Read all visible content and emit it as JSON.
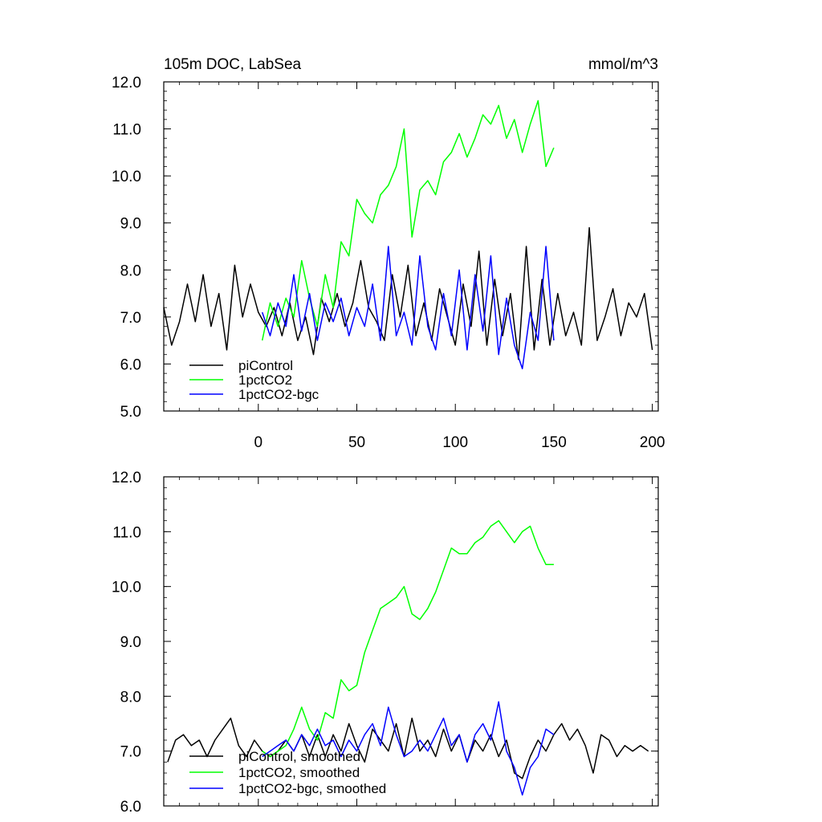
{
  "chart_data": [
    {
      "type": "line",
      "title": "105m DOC, LabSea",
      "units_label": "mmol/m^3",
      "xlim": [
        -48,
        203
      ],
      "ylim": [
        5.0,
        12.0
      ],
      "x_ticks": [
        0,
        50,
        100,
        150,
        200
      ],
      "x_tick_labels": [
        "0",
        "50",
        "100",
        "150",
        "200"
      ],
      "y_ticks": [
        5.0,
        6.0,
        7.0,
        8.0,
        9.0,
        10.0,
        11.0,
        12.0
      ],
      "y_tick_labels": [
        "5.0",
        "6.0",
        "7.0",
        "8.0",
        "9.0",
        "10.0",
        "11.0",
        "12.0"
      ],
      "grid": false,
      "legend_position": "bottom-left",
      "series": [
        {
          "name": "piControl",
          "color": "#000000",
          "x": [
            -48,
            -44,
            -40,
            -36,
            -32,
            -28,
            -24,
            -20,
            -16,
            -12,
            -8,
            -4,
            0,
            4,
            8,
            12,
            16,
            20,
            24,
            28,
            32,
            36,
            40,
            44,
            48,
            52,
            56,
            60,
            64,
            68,
            72,
            76,
            80,
            84,
            88,
            92,
            96,
            100,
            104,
            108,
            112,
            116,
            120,
            124,
            128,
            132,
            136,
            140,
            144,
            148,
            152,
            156,
            160,
            164,
            168,
            172,
            176,
            180,
            184,
            188,
            192,
            196,
            200
          ],
          "y": [
            7.2,
            6.4,
            6.9,
            7.7,
            6.9,
            7.9,
            6.8,
            7.5,
            6.3,
            8.1,
            7.0,
            7.7,
            7.1,
            6.8,
            7.2,
            6.6,
            7.3,
            6.5,
            7.0,
            6.2,
            7.4,
            6.9,
            7.5,
            6.8,
            7.3,
            8.2,
            7.2,
            6.9,
            6.5,
            7.9,
            7.0,
            8.1,
            6.6,
            7.3,
            6.5,
            7.6,
            7.0,
            6.4,
            7.7,
            6.8,
            8.4,
            6.4,
            7.8,
            6.6,
            7.5,
            6.1,
            8.5,
            6.3,
            7.8,
            6.4,
            7.5,
            6.6,
            7.1,
            6.4,
            8.9,
            6.5,
            7.0,
            7.6,
            6.6,
            7.3,
            7.0,
            7.5,
            6.3
          ]
        },
        {
          "name": "1pctCO2",
          "color": "#00ff00",
          "x": [
            2,
            6,
            10,
            14,
            18,
            22,
            26,
            30,
            34,
            38,
            42,
            46,
            50,
            54,
            58,
            62,
            66,
            70,
            74,
            78,
            82,
            86,
            90,
            94,
            98,
            102,
            106,
            110,
            114,
            118,
            122,
            126,
            130,
            134,
            138,
            142,
            146,
            150
          ],
          "y": [
            6.5,
            7.3,
            6.8,
            7.4,
            7.0,
            8.2,
            7.4,
            6.8,
            7.9,
            7.2,
            8.6,
            8.3,
            9.5,
            9.2,
            9.0,
            9.6,
            9.8,
            10.2,
            11.0,
            8.7,
            9.7,
            9.9,
            9.6,
            10.3,
            10.5,
            10.9,
            10.4,
            10.8,
            11.3,
            11.1,
            11.5,
            10.8,
            11.2,
            10.5,
            11.1,
            11.6,
            10.2,
            10.6
          ]
        },
        {
          "name": "1pctCO2-bgc",
          "color": "#0000ff",
          "x": [
            2,
            6,
            10,
            14,
            18,
            22,
            26,
            30,
            34,
            38,
            42,
            46,
            50,
            54,
            58,
            62,
            66,
            70,
            74,
            78,
            82,
            86,
            90,
            94,
            98,
            102,
            106,
            110,
            114,
            118,
            122,
            126,
            130,
            134,
            138,
            142,
            146,
            150
          ],
          "y": [
            7.1,
            6.6,
            7.3,
            6.8,
            7.9,
            6.7,
            7.5,
            6.5,
            7.3,
            6.9,
            7.4,
            6.6,
            7.2,
            6.8,
            7.7,
            6.5,
            8.5,
            6.6,
            7.1,
            6.4,
            8.3,
            6.8,
            6.3,
            7.5,
            6.6,
            8.0,
            6.3,
            7.9,
            6.7,
            8.3,
            6.2,
            7.4,
            6.4,
            5.9,
            7.1,
            6.5,
            8.5,
            6.5
          ]
        }
      ]
    },
    {
      "type": "line",
      "xlim": [
        -48,
        203
      ],
      "ylim": [
        6.0,
        12.0
      ],
      "x_ticks": [
        0,
        50,
        100,
        150,
        200
      ],
      "y_ticks": [
        6.0,
        7.0,
        8.0,
        9.0,
        10.0,
        11.0,
        12.0
      ],
      "y_tick_labels": [
        "6.0",
        "7.0",
        "8.0",
        "9.0",
        "10.0",
        "11.0",
        "12.0"
      ],
      "grid": false,
      "legend_position": "bottom-left",
      "series": [
        {
          "name": "piControl, smoothed",
          "color": "#000000",
          "x": [
            -46,
            -42,
            -38,
            -34,
            -30,
            -26,
            -22,
            -18,
            -14,
            -10,
            -6,
            -2,
            2,
            6,
            10,
            14,
            18,
            22,
            26,
            30,
            34,
            38,
            42,
            46,
            50,
            54,
            58,
            62,
            66,
            70,
            74,
            78,
            82,
            86,
            90,
            94,
            98,
            102,
            106,
            110,
            114,
            118,
            122,
            126,
            130,
            134,
            138,
            142,
            146,
            150,
            154,
            158,
            162,
            166,
            170,
            174,
            178,
            182,
            186,
            190,
            194,
            198
          ],
          "y": [
            6.8,
            7.2,
            7.3,
            7.1,
            7.2,
            6.9,
            7.2,
            7.4,
            7.6,
            7.1,
            6.9,
            7.2,
            7.0,
            6.9,
            7.0,
            7.2,
            7.0,
            7.3,
            6.9,
            7.3,
            6.9,
            7.3,
            7.0,
            7.5,
            7.1,
            6.8,
            7.4,
            7.2,
            7.0,
            7.5,
            6.9,
            7.6,
            7.0,
            7.2,
            6.9,
            7.4,
            7.0,
            7.3,
            6.8,
            7.2,
            7.0,
            7.3,
            6.9,
            7.2,
            6.6,
            6.5,
            6.9,
            7.2,
            7.0,
            7.3,
            7.5,
            7.2,
            7.4,
            7.1,
            6.6,
            7.3,
            7.2,
            6.9,
            7.1,
            7.0,
            7.1,
            7.0
          ]
        },
        {
          "name": "1pctCO2, smoothed",
          "color": "#00ff00",
          "x": [
            2,
            6,
            10,
            14,
            18,
            22,
            26,
            30,
            34,
            38,
            42,
            46,
            50,
            54,
            58,
            62,
            66,
            70,
            74,
            78,
            82,
            86,
            90,
            94,
            98,
            102,
            106,
            110,
            114,
            118,
            122,
            126,
            130,
            134,
            138,
            142,
            146,
            150
          ],
          "y": [
            7.0,
            6.9,
            7.0,
            7.1,
            7.4,
            7.8,
            7.4,
            7.2,
            7.7,
            7.6,
            8.3,
            8.1,
            8.2,
            8.8,
            9.2,
            9.6,
            9.7,
            9.8,
            10.0,
            9.5,
            9.4,
            9.6,
            9.9,
            10.3,
            10.7,
            10.6,
            10.6,
            10.8,
            10.9,
            11.1,
            11.2,
            11.0,
            10.8,
            11.0,
            11.1,
            10.7,
            10.4,
            10.4
          ]
        },
        {
          "name": "1pctCO2-bgc, smoothed",
          "color": "#0000ff",
          "x": [
            2,
            6,
            10,
            14,
            18,
            22,
            26,
            30,
            34,
            38,
            42,
            46,
            50,
            54,
            58,
            62,
            66,
            70,
            74,
            78,
            82,
            86,
            90,
            94,
            98,
            102,
            106,
            110,
            114,
            118,
            122,
            126,
            130,
            134,
            138,
            142,
            146,
            150
          ],
          "y": [
            6.9,
            7.0,
            7.1,
            7.2,
            7.0,
            7.3,
            7.1,
            7.4,
            7.1,
            7.2,
            6.9,
            7.2,
            7.0,
            7.3,
            7.5,
            7.1,
            7.8,
            7.3,
            6.9,
            7.0,
            7.2,
            7.0,
            7.3,
            7.6,
            7.1,
            7.3,
            6.8,
            7.3,
            7.5,
            7.2,
            7.9,
            7.0,
            6.7,
            6.2,
            6.7,
            6.9,
            7.4,
            7.3
          ]
        }
      ]
    }
  ]
}
